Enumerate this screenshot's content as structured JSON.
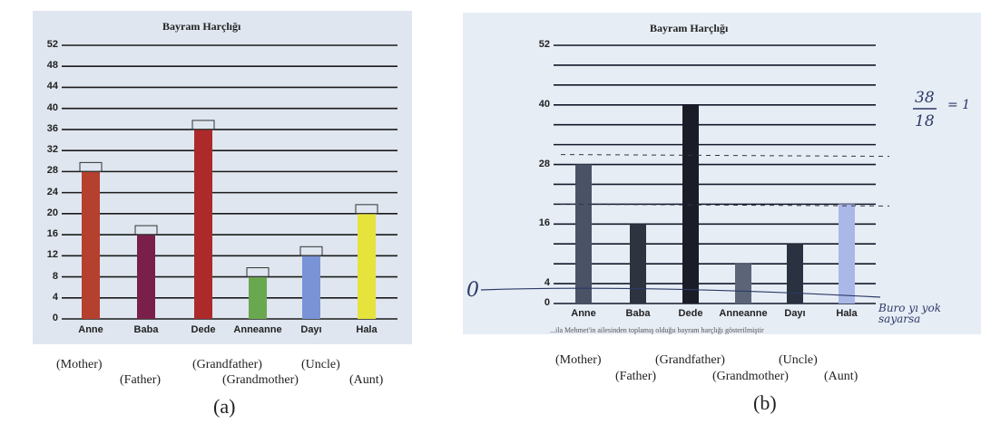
{
  "chart_data": [
    {
      "type": "bar",
      "panel": "a",
      "title": "Bayram Harçlığı",
      "categories": [
        "Anne",
        "Baba",
        "Dede",
        "Anneanne",
        "Dayı",
        "Hala"
      ],
      "values": [
        28,
        16,
        36,
        8,
        12,
        20
      ],
      "colors": [
        "#b5402e",
        "#7a1f4a",
        "#ac2a2a",
        "#6aa84f",
        "#7a93d6",
        "#e6e33d"
      ],
      "yticks": [
        0,
        4,
        8,
        12,
        16,
        20,
        24,
        28,
        32,
        36,
        40,
        44,
        48,
        52
      ],
      "ytick_labels": [
        "0",
        "4",
        "8",
        "12",
        "16",
        "20",
        "24",
        "28",
        "32",
        "36",
        "40",
        "44",
        "48",
        "52"
      ],
      "ylim": [
        0,
        52
      ],
      "grid": true,
      "translations": [
        "(Mother)",
        "(Father)",
        "(Grandfather)",
        "(Grandmother)",
        "(Uncle)",
        "(Aunt)"
      ],
      "caption": "(a)"
    },
    {
      "type": "bar",
      "panel": "b",
      "title": "Bayram Harçlığı",
      "categories": [
        "Anne",
        "Baba",
        "Dede",
        "Anneanne",
        "Dayı",
        "Hala"
      ],
      "values": [
        28,
        16,
        40,
        8,
        12,
        20
      ],
      "colors": [
        "#4a5266",
        "#2e3340",
        "#1a1d28",
        "#5c6578",
        "#2a3140",
        "#aab8e8"
      ],
      "yticks": [
        0,
        4,
        16,
        28,
        40,
        52
      ],
      "ytick_labels": [
        "0",
        "4",
        "16",
        "28",
        "40",
        "52"
      ],
      "ylim": [
        0,
        52
      ],
      "grid": true,
      "translations": [
        "(Mother)",
        "(Father)",
        "(Grandfather)",
        "(Grandmother)",
        "(Uncle)",
        "(Aunt)"
      ],
      "caption": "(b)",
      "annotations": {
        "fraction_num": "38",
        "fraction_den": "18",
        "fraction_rest": "= 1",
        "zero_mark": "0",
        "note": "Buro yı yok sayarsa"
      },
      "footer_text": "...ila Mehmet'in ailesinden toplamış olduğu bayram harçlığı gösterilmiştir"
    }
  ]
}
